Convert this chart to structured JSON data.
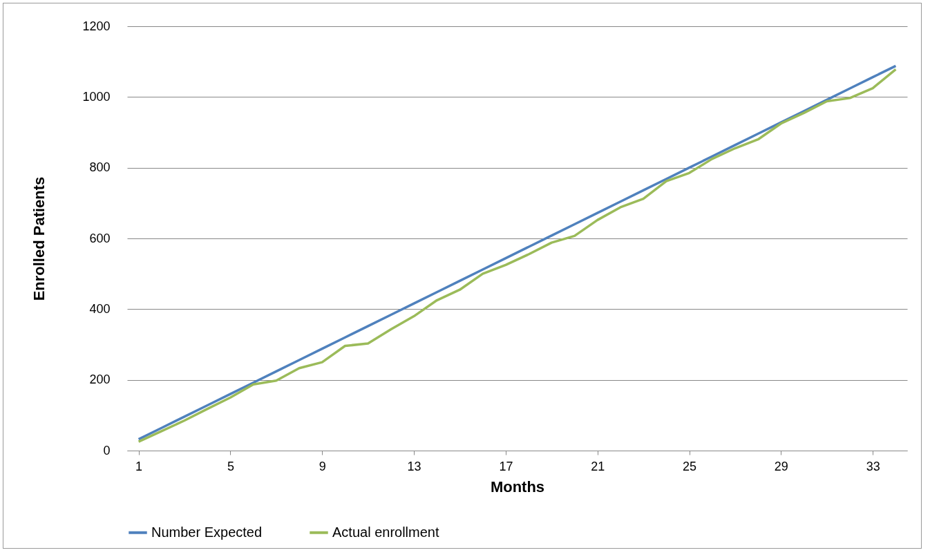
{
  "chart_data": {
    "type": "line",
    "xlabel": "Months",
    "ylabel": "Enrolled Patients",
    "x": [
      1,
      2,
      3,
      4,
      5,
      6,
      7,
      8,
      9,
      10,
      11,
      12,
      13,
      14,
      15,
      16,
      17,
      18,
      19,
      20,
      21,
      22,
      23,
      24,
      25,
      26,
      27,
      28,
      29,
      30,
      31,
      32,
      33,
      34
    ],
    "series": [
      {
        "name": "Number Expected",
        "color": "#4f81bd",
        "values": [
          32,
          64,
          96,
          128,
          160,
          192,
          224,
          256,
          288,
          320,
          352,
          384,
          416,
          448,
          480,
          512,
          544,
          576,
          608,
          640,
          672,
          704,
          736,
          768,
          800,
          832,
          864,
          896,
          928,
          960,
          992,
          1024,
          1056,
          1088
        ]
      },
      {
        "name": "Actual enrollment",
        "color": "#9bbb59",
        "values": [
          25,
          55,
          85,
          118,
          150,
          187,
          198,
          233,
          250,
          296,
          303,
          343,
          380,
          425,
          455,
          500,
          525,
          555,
          588,
          607,
          652,
          688,
          712,
          762,
          785,
          825,
          855,
          880,
          925,
          955,
          988,
          997,
          1025,
          1078
        ]
      }
    ],
    "xlim": [
      0.5,
      34.5
    ],
    "xticks": [
      1,
      5,
      9,
      13,
      17,
      21,
      25,
      29,
      33
    ],
    "ylim": [
      0,
      1200
    ],
    "yticks": [
      0,
      200,
      400,
      600,
      800,
      1000,
      1200
    ],
    "grid": "y",
    "legend": "bottom",
    "marker": "none",
    "line_style": "solid"
  }
}
